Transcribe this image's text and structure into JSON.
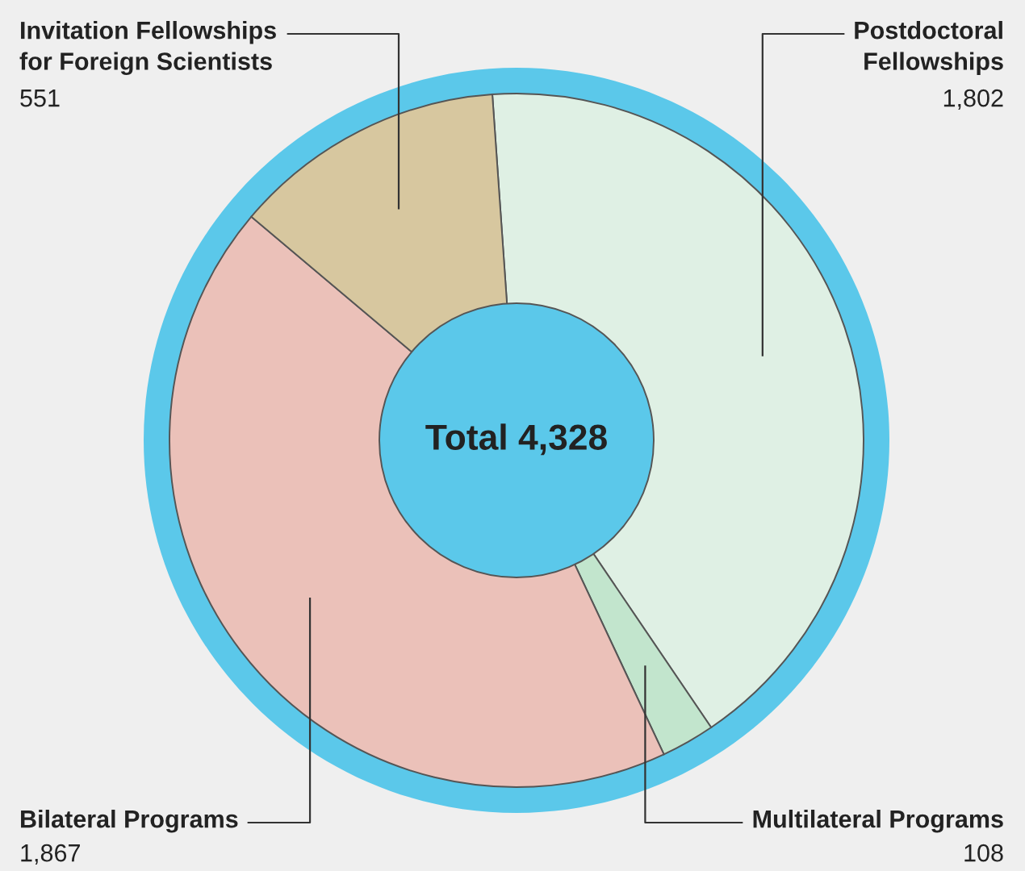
{
  "chart_data": {
    "type": "donut",
    "categories": [
      "Postdoctoral\nFellowships",
      "Multilateral Programs",
      "Bilateral Programs",
      "Invitation Fellowships\nfor Foreign Scientists"
    ],
    "values": [
      1802,
      108,
      1867,
      551
    ],
    "value_labels": [
      "1,802",
      "108",
      "1,867",
      "551"
    ],
    "colors": [
      "#dff0e4",
      "#c2e5cd",
      "#ebc1b9",
      "#d7c79f"
    ],
    "annotations": [
      "Total 4,328"
    ]
  }
}
